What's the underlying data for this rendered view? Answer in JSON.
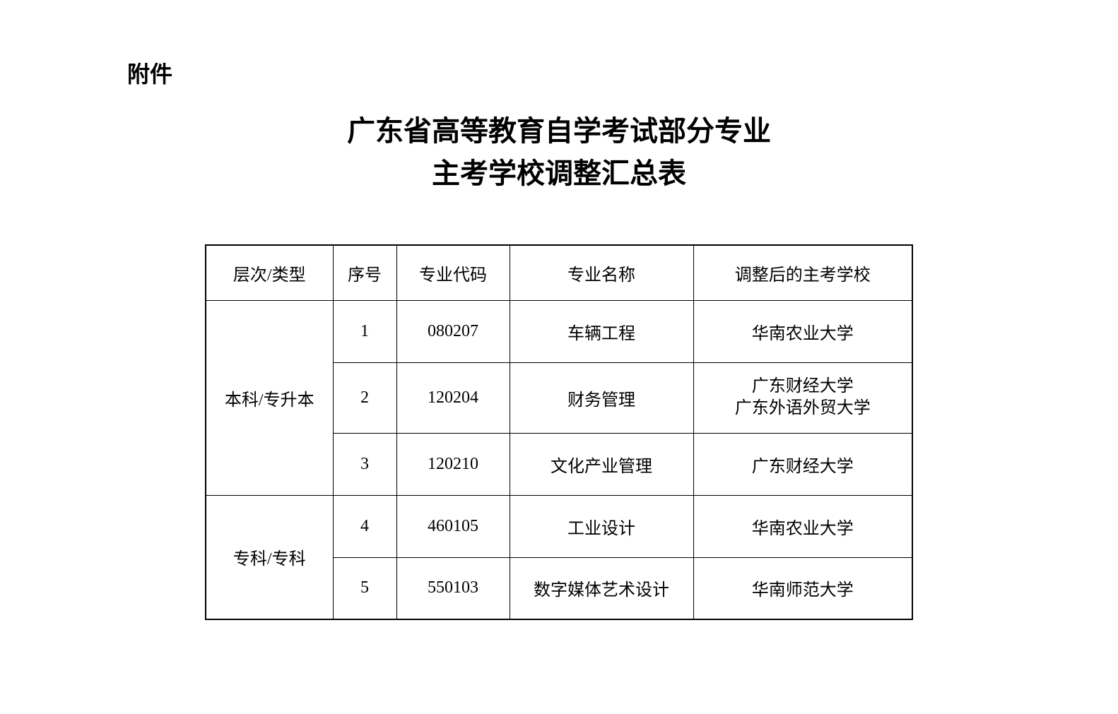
{
  "attachment_label": "附件",
  "title_line1": "广东省高等教育自学考试部分专业",
  "title_line2": "主考学校调整汇总表",
  "table": {
    "headers": {
      "level": "层次/类型",
      "seq": "序号",
      "code": "专业代码",
      "name": "专业名称",
      "school": "调整后的主考学校"
    },
    "groups": [
      {
        "level": "本科/专升本",
        "rows": [
          {
            "seq": "1",
            "code": "080207",
            "name": "车辆工程",
            "school": "华南农业大学"
          },
          {
            "seq": "2",
            "code": "120204",
            "name": "财务管理",
            "school_line1": "广东财经大学",
            "school_line2": "广东外语外贸大学"
          },
          {
            "seq": "3",
            "code": "120210",
            "name": "文化产业管理",
            "school": "广东财经大学"
          }
        ]
      },
      {
        "level": "专科/专科",
        "rows": [
          {
            "seq": "4",
            "code": "460105",
            "name": "工业设计",
            "school": "华南农业大学"
          },
          {
            "seq": "5",
            "code": "550103",
            "name": "数字媒体艺术设计",
            "school": "华南师范大学"
          }
        ]
      }
    ]
  },
  "styling": {
    "background_color": "#ffffff",
    "text_color": "#000000",
    "border_color": "#000000",
    "font_family": "SimSun",
    "attachment_fontsize": 32,
    "title_fontsize": 40,
    "cell_fontsize": 24,
    "col_widths": {
      "level": 180,
      "seq": 90,
      "code": 160,
      "name": 260,
      "school": 310
    },
    "header_row_height": 78,
    "data_row_height": 88,
    "tall_row_height": 100
  }
}
